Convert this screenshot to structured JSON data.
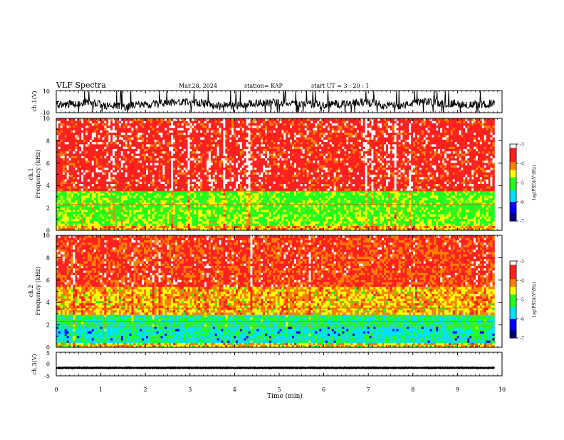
{
  "header": {
    "title": "VLF Spectra",
    "date": "Mar.28, 2024",
    "station": "station= KAP",
    "start_ut": "start  UT  =   3  : 20 : 1"
  },
  "colors": {
    "axis": "#000000",
    "white": "#ffffff",
    "red": "#ff2020",
    "orange": "#ff8000",
    "yellow": "#ffff00",
    "green": "#20ff20",
    "cyan": "#00e0ff",
    "blue": "#0000ff",
    "navy": "#00007f"
  },
  "chart_data": [
    {
      "type": "line",
      "ylabel": "ch.1(V)",
      "ylim": [
        -10,
        10
      ],
      "y_tick_labels": [
        "10",
        "-10"
      ],
      "x_range": [
        0,
        10
      ],
      "data_end_min": 9.83,
      "description_series": "noisy waveform, mostly within 0 to -10 V"
    },
    {
      "type": "heatmap",
      "ylabel": "ch.1\nFrequency (kHz)",
      "ylabel_lines": [
        "ch.1",
        "Frequency (kHz)"
      ],
      "ylim": [
        0,
        10
      ],
      "y_tick_labels": [
        "0",
        "2",
        "4",
        "6",
        "8",
        "10"
      ],
      "x_range": [
        0,
        10
      ],
      "data_end_min": 9.83,
      "bands_khz": [
        {
          "from": 0,
          "to": 0.4,
          "level": -4.2
        },
        {
          "from": 0.4,
          "to": 1.5,
          "level": -4.8
        },
        {
          "from": 1.5,
          "to": 3.6,
          "level": -4.9
        },
        {
          "from": 3.6,
          "to": 10,
          "level": -3.6
        }
      ],
      "colorbar": {
        "label": "log(PSD)(V²/Hz)",
        "ticks": [
          "-3",
          "-4",
          "-5",
          "-6",
          "-7"
        ],
        "range": [
          -7,
          -3
        ]
      }
    },
    {
      "type": "heatmap",
      "ylabel": "ch.2\nFrequency (kHz)",
      "ylabel_lines": [
        "ch.2",
        "Frequency (kHz)"
      ],
      "ylim": [
        0,
        10
      ],
      "y_tick_labels": [
        "0",
        "2",
        "4",
        "6",
        "8",
        "10"
      ],
      "x_range": [
        0,
        10
      ],
      "data_end_min": 9.83,
      "bands_khz": [
        {
          "from": 0,
          "to": 0.5,
          "level": -4.4
        },
        {
          "from": 0.5,
          "to": 1.8,
          "level": -5.6
        },
        {
          "from": 1.8,
          "to": 3.0,
          "level": -5.3
        },
        {
          "from": 3.0,
          "to": 5.5,
          "level": -4.3
        },
        {
          "from": 5.5,
          "to": 10,
          "level": -3.8
        }
      ],
      "colorbar": {
        "label": "log(PSD)(V²/Hz)",
        "ticks": [
          "-3",
          "-4",
          "-5",
          "-6",
          "-7"
        ],
        "range": [
          -7,
          -3
        ]
      }
    },
    {
      "type": "line",
      "ylabel": "ch.3(V)",
      "ylim": [
        -5,
        5
      ],
      "y_tick_labels": [
        "5",
        "0",
        "-5"
      ],
      "x_range": [
        0,
        10
      ],
      "xlabel": "Time  (min)",
      "x_tick_labels": [
        "0",
        "1",
        "2",
        "3",
        "4",
        "5",
        "6",
        "7",
        "8",
        "9",
        "10"
      ],
      "data_end_min": 9.83,
      "baseline_v": -1.6
    }
  ]
}
